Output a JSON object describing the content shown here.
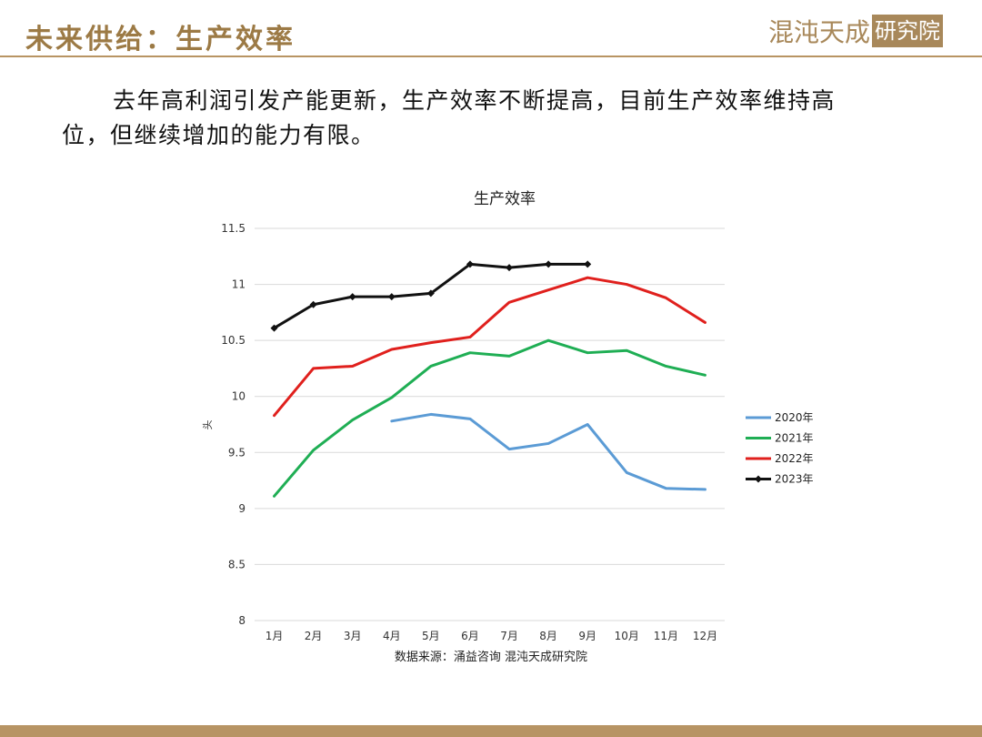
{
  "header": {
    "title": "未来供给：生产效率",
    "logo_text": "混沌天成",
    "logo_box_text": "研究院"
  },
  "body": {
    "text": "去年高利润引发产能更新，生产效率不断提高，目前生产效率维持高位，但继续增加的能力有限。"
  },
  "chart_data": {
    "type": "line",
    "title": "生产效率",
    "ylabel": "头",
    "source": "数据来源：涌益咨询 混沌天成研究院",
    "categories": [
      "1月",
      "2月",
      "3月",
      "4月",
      "5月",
      "6月",
      "7月",
      "8月",
      "9月",
      "10月",
      "11月",
      "12月"
    ],
    "ylim": [
      8,
      11.5
    ],
    "yticks": [
      8,
      8.5,
      9,
      9.5,
      10,
      10.5,
      11,
      11.5
    ],
    "ytick_labels": [
      "8",
      "8.5",
      "9",
      "9.5",
      "10",
      "10.5",
      "11",
      "11.5"
    ],
    "grid": true,
    "legend_position": "right",
    "series": [
      {
        "name": "2020年",
        "color": "#5b9bd5",
        "marker": false,
        "values": [
          null,
          null,
          null,
          9.78,
          9.84,
          9.8,
          9.53,
          9.58,
          9.75,
          9.32,
          9.18,
          9.17
        ]
      },
      {
        "name": "2021年",
        "color": "#1fae54",
        "marker": false,
        "values": [
          9.11,
          9.52,
          9.79,
          9.99,
          10.27,
          10.39,
          10.36,
          10.5,
          10.39,
          10.41,
          10.27,
          10.19
        ]
      },
      {
        "name": "2022年",
        "color": "#e0201d",
        "marker": false,
        "values": [
          9.83,
          10.25,
          10.27,
          10.42,
          10.48,
          10.53,
          10.84,
          10.95,
          11.06,
          11.0,
          10.88,
          10.66
        ]
      },
      {
        "name": "2023年",
        "color": "#111111",
        "marker": true,
        "values": [
          10.61,
          10.82,
          10.89,
          10.89,
          10.92,
          11.18,
          11.15,
          11.18,
          11.18,
          null,
          null,
          null
        ]
      }
    ]
  }
}
